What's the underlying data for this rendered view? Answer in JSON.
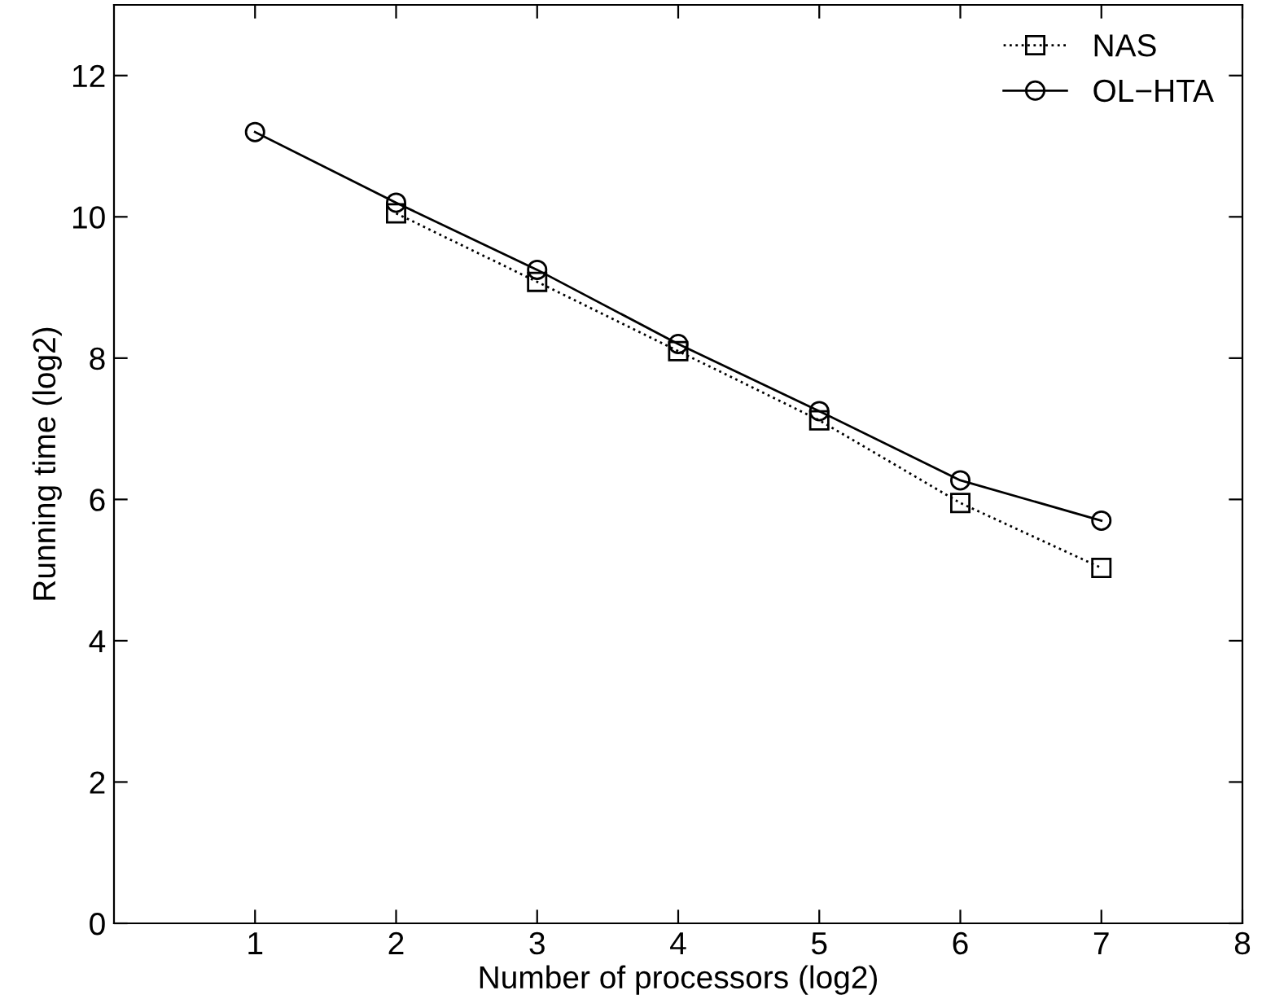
{
  "chart_data": {
    "type": "line",
    "xlabel": "Number of processors (log2)",
    "ylabel": "Running time (log2)",
    "xlim": [
      0,
      8
    ],
    "xticks": [
      1,
      2,
      3,
      4,
      5,
      6,
      7,
      8
    ],
    "ylim": [
      0,
      13
    ],
    "yticks": [
      0,
      2,
      4,
      6,
      8,
      10,
      12
    ],
    "grid": false,
    "legend": "top right",
    "series": [
      {
        "name": "NAS",
        "color": "#000000",
        "x": [
          2,
          3,
          4,
          5,
          6,
          7
        ],
        "values": [
          10.05,
          9.08,
          8.1,
          7.12,
          5.95,
          5.03
        ],
        "marker": "square",
        "line_style": "dotted"
      },
      {
        "name": "OL−HTA",
        "color": "#000000",
        "x": [
          1,
          2,
          3,
          4,
          5,
          6,
          7
        ],
        "values": [
          11.2,
          10.2,
          9.25,
          8.2,
          7.25,
          6.27,
          5.7
        ],
        "marker": "circle",
        "line_style": "solid"
      }
    ]
  }
}
